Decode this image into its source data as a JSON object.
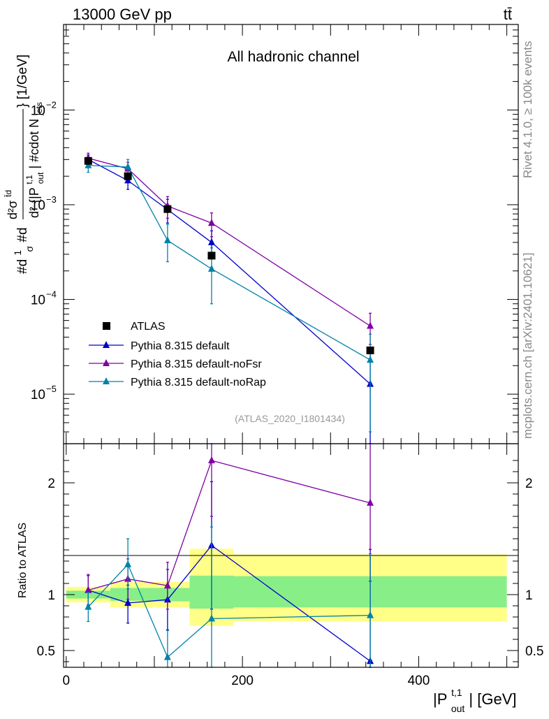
{
  "header": {
    "energy_label": "13000 GeV pp",
    "process_label": "tt̄",
    "channel_label": "All hadronic channel",
    "side_label_top": "Rivet 4.1.0, ≥ 100k events",
    "side_label_bottom": "mcplots.cern.ch [arXiv:2401.10621]",
    "watermark": "(ATLAS_2020_I1801434)"
  },
  "chart_data": [
    {
      "type": "line",
      "yscale": "log",
      "title": "All hadronic channel",
      "ylabel": "#d\\frac{1}{\\sigma}#d\\frac{d^2\\sigma^{tt}}{d^2 {|P_{out}^{t,1}| #cdot N_{jets}}} [1/GeV]",
      "ylabel_parts": {
        "main": "#d",
        "frac_num": "1",
        "frac_den": "σ",
        "mid": "#d",
        "num": "d²σ",
        "num_sup": "t̄d",
        "den_a": "d² {|P",
        "den_sup": "t,1",
        "den_sub": "out",
        "den_b": "| #cdot N",
        "den_sub2": "jets",
        "unit": "} [1/GeV]"
      },
      "ylim": [
        3e-06,
        0.08
      ],
      "yticks": [
        {
          "value": 1e-05,
          "label": "10",
          "exp": "−5"
        },
        {
          "value": 0.0001,
          "label": "10",
          "exp": "−4"
        },
        {
          "value": 0.001,
          "label": "10",
          "exp": "−3"
        },
        {
          "value": 0.01,
          "label": "10",
          "exp": "−2"
        }
      ],
      "xlim": [
        -3,
        513
      ],
      "bins": [
        [
          0,
          50
        ],
        [
          50,
          90
        ],
        [
          90,
          140
        ],
        [
          140,
          190
        ],
        [
          190,
          500
        ]
      ],
      "data": {
        "name": "ATLAS",
        "x": [
          25,
          70,
          115,
          165,
          345
        ],
        "y": [
          0.0029,
          0.002,
          0.0009,
          0.00029,
          2.9e-05
        ]
      },
      "series": [
        {
          "name": "Pythia 8.315 default",
          "color": "#0000cc",
          "x": [
            25,
            70,
            115,
            165,
            345
          ],
          "y": [
            0.003,
            0.0018,
            0.00089,
            0.0004,
            1.28e-05
          ],
          "err_up": [
            0.00035,
            0.00035,
            0.00025,
            0.00013,
            1.45e-05
          ],
          "err_dn": [
            0.00035,
            0.00035,
            0.00025,
            0.00013,
            9.8e-06
          ]
        },
        {
          "name": "Pythia 8.315 default-noFsr",
          "color": "#7f00a6",
          "x": [
            25,
            70,
            115,
            165,
            345
          ],
          "y": [
            0.0031,
            0.0024,
            0.00097,
            0.00064,
            5.25e-05
          ],
          "err_up": [
            0.0004,
            0.0004,
            0.00025,
            0.00018,
            1.9e-05
          ],
          "err_dn": [
            0.0004,
            0.0004,
            0.00025,
            0.00018,
            1.9e-05
          ]
        },
        {
          "name": "Pythia 8.315 default-noRap",
          "color": "#0082a8",
          "x": [
            25,
            70,
            115,
            165,
            345
          ],
          "y": [
            0.0026,
            0.0025,
            0.00042,
            0.00021,
            2.3e-05
          ],
          "err_up": [
            0.0004,
            0.0005,
            0.0002,
            0.00014,
            2e-05
          ],
          "err_dn": [
            0.0004,
            0.0005,
            0.00017,
            0.00012,
            1.9e-05
          ]
        }
      ]
    },
    {
      "type": "line",
      "ylabel": "Ratio to ATLAS",
      "xlabel": "|P",
      "xlabel_sup": "t,1",
      "xlabel_sub": "out",
      "xlabel_unit": "| [GeV]",
      "ylim": [
        0.35,
        2.35
      ],
      "yticks": [
        {
          "value": 0.5,
          "label": "0.5"
        },
        {
          "value": 1,
          "label": "1"
        },
        {
          "value": 2,
          "label": "2"
        }
      ],
      "xticks": [
        {
          "value": 0,
          "label": "0"
        },
        {
          "value": 200,
          "label": "200"
        },
        {
          "value": 400,
          "label": "400"
        }
      ],
      "xlim": [
        -3,
        513
      ],
      "bands": [
        {
          "x": [
            0,
            50
          ],
          "inner": [
            0.965,
            1.035
          ],
          "outer": [
            0.93,
            1.07
          ]
        },
        {
          "x": [
            50,
            90
          ],
          "inner": [
            0.945,
            1.06
          ],
          "outer": [
            0.885,
            1.115
          ]
        },
        {
          "x": [
            90,
            140
          ],
          "inner": [
            0.94,
            1.06
          ],
          "outer": [
            0.885,
            1.115
          ]
        },
        {
          "x": [
            140,
            190
          ],
          "inner": [
            0.875,
            1.17
          ],
          "outer": [
            0.72,
            1.41
          ]
        },
        {
          "x": [
            190,
            500
          ],
          "inner": [
            0.885,
            1.165
          ],
          "outer": [
            0.76,
            1.36
          ]
        }
      ],
      "series": [
        {
          "name": "Pythia 8.315 default",
          "color": "#0000cc",
          "x": [
            25,
            70,
            115,
            165,
            345
          ],
          "y": [
            1.04,
            0.925,
            0.955,
            1.44,
            0.405
          ],
          "err_up": [
            0.13,
            0.16,
            0.27,
            0.57,
            1.0
          ],
          "err_dn": [
            0.13,
            0.18,
            0.27,
            0.57,
            0.1
          ]
        },
        {
          "name": "Pythia 8.315 default-noFsr",
          "color": "#7f00a6",
          "x": [
            25,
            70,
            115,
            165,
            345
          ],
          "y": [
            1.04,
            1.14,
            1.08,
            2.2,
            1.82
          ],
          "err_up": [
            0.14,
            0.18,
            0.21,
            0.5,
            0.6
          ],
          "err_dn": [
            0.14,
            0.18,
            0.21,
            0.5,
            0.7
          ]
        },
        {
          "name": "Pythia 8.315 default-noRap",
          "color": "#0082a8",
          "x": [
            25,
            70,
            115,
            165,
            345
          ],
          "y": [
            0.89,
            1.27,
            0.44,
            0.785,
            0.815
          ],
          "err_up": [
            0.13,
            0.23,
            0.24,
            0.82,
            0.55
          ],
          "err_dn": [
            0.13,
            0.22,
            0.09,
            0.5,
            0.5
          ]
        }
      ]
    }
  ]
}
